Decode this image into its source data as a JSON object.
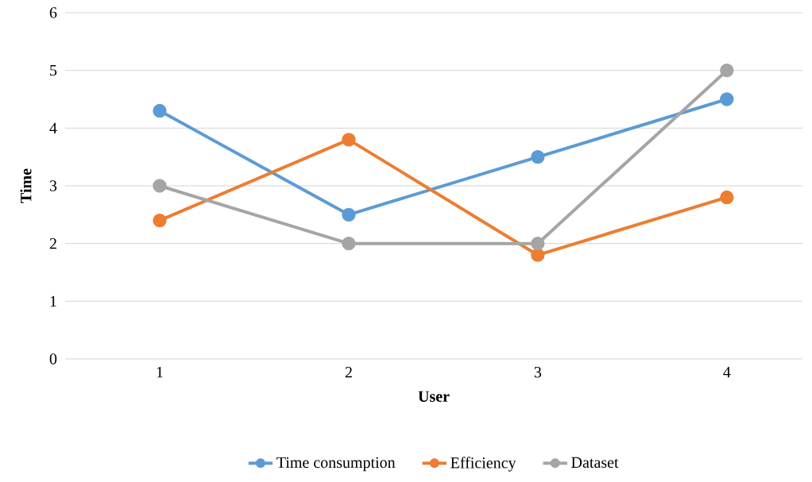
{
  "chart_data": {
    "type": "line",
    "xlabel": "User",
    "ylabel": "Time",
    "categories": [
      "1",
      "2",
      "3",
      "4"
    ],
    "series": [
      {
        "name": "Time consumption",
        "color": "#5b9bd5",
        "values": [
          4.3,
          2.5,
          3.5,
          4.5
        ]
      },
      {
        "name": "Efficiency",
        "color": "#ed7d31",
        "values": [
          2.4,
          3.8,
          1.8,
          2.8
        ]
      },
      {
        "name": "Dataset",
        "color": "#a5a5a5",
        "values": [
          3,
          2,
          2,
          5
        ]
      }
    ],
    "ylim": [
      0,
      6
    ],
    "yticks": [
      0,
      1,
      2,
      3,
      4,
      5,
      6
    ],
    "grid": "y",
    "legend": "bottom",
    "marker": "circle",
    "line_style": "solid"
  }
}
